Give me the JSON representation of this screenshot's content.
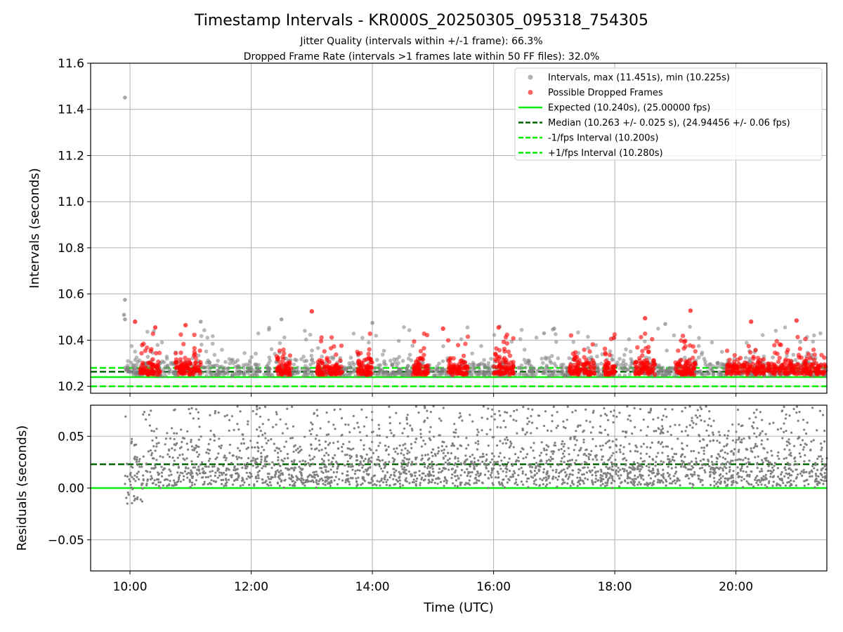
{
  "chart_data": [
    {
      "type": "scatter",
      "title": "Timestamp Intervals - KR000S_20250305_095318_754305",
      "subtitle": [
        "Jitter Quality (intervals within +/-1 frame): 66.3%",
        "Dropped Frame Rate (intervals >1 frames late within 50 FF files): 32.0%"
      ],
      "xlabel": "",
      "ylabel": "Intervals (seconds)",
      "xlim": [
        "09:21",
        "21:30"
      ],
      "ylim": [
        10.17,
        11.6
      ],
      "x_tick_labels": [
        "10:00",
        "12:00",
        "14:00",
        "16:00",
        "18:00",
        "20:00"
      ],
      "y_ticks": [
        10.2,
        10.4,
        10.6,
        10.8,
        11.0,
        11.2,
        11.4,
        11.6
      ],
      "y_tick_labels": [
        "10.2",
        "10.4",
        "10.6",
        "10.8",
        "11.0",
        "11.2",
        "11.4",
        "11.6"
      ],
      "grid": true,
      "legend_placement": "top-right",
      "series": [
        {
          "name": "Intervals, max (11.451s), min (10.225s)",
          "kind": "scatter",
          "color": "#808080",
          "notable_points": [
            {
              "x": "09:55",
              "y": 11.451
            },
            {
              "x": "09:55",
              "y": 10.575
            },
            {
              "x": "09:54",
              "y": 10.51
            },
            {
              "x": "09:55",
              "y": 10.49
            },
            {
              "x": "11:10",
              "y": 10.48
            },
            {
              "x": "12:30",
              "y": 10.49
            },
            {
              "x": "14:00",
              "y": 10.475
            },
            {
              "x": "18:50",
              "y": 10.47
            },
            {
              "x": "16:50",
              "y": 10.43
            },
            {
              "x": "17:00",
              "y": 10.45
            }
          ],
          "distribution": "dense band mostly between 10.23 and 10.35 from 09:55 to 21:30"
        },
        {
          "name": "Possible Dropped Frames",
          "kind": "scatter",
          "color": "#ff0000",
          "notable_points": [
            {
              "x": "10:05",
              "y": 10.48
            },
            {
              "x": "10:25",
              "y": 10.455
            },
            {
              "x": "10:55",
              "y": 10.465
            },
            {
              "x": "13:00",
              "y": 10.525
            },
            {
              "x": "15:10",
              "y": 10.45
            },
            {
              "x": "16:05",
              "y": 10.455
            },
            {
              "x": "18:30",
              "y": 10.495
            },
            {
              "x": "19:15",
              "y": 10.528
            },
            {
              "x": "20:15",
              "y": 10.48
            },
            {
              "x": "21:00",
              "y": 10.485
            }
          ],
          "clusters": [
            "10:10-10:30",
            "10:45-11:10",
            "12:25-12:40",
            "13:05-13:30",
            "13:45-14:00",
            "14:40-14:55",
            "15:15-15:35",
            "16:00-16:20",
            "17:15-17:40",
            "17:50-18:00",
            "18:20-18:40",
            "19:00-19:20",
            "19:50-21:30"
          ]
        },
        {
          "name": "Expected (10.240s), (25.00000 fps)",
          "kind": "hline",
          "y": 10.24,
          "color": "#00ee00",
          "style": "solid"
        },
        {
          "name": "Median (10.263 +/- 0.025 s), (24.94456 +/- 0.06 fps)",
          "kind": "hline",
          "y": 10.263,
          "color": "#006400",
          "style": "dashed"
        },
        {
          "name": "-1/fps Interval (10.200s)",
          "kind": "hline",
          "y": 10.2,
          "color": "#00ee00",
          "style": "dashed"
        },
        {
          "name": "+1/fps Interval (10.280s)",
          "kind": "hline",
          "y": 10.28,
          "color": "#00ee00",
          "style": "dashed"
        }
      ]
    },
    {
      "type": "scatter",
      "xlabel": "Time (UTC)",
      "ylabel": "Residuals (seconds)",
      "xlim": [
        "09:21",
        "21:30"
      ],
      "ylim": [
        -0.08,
        0.08
      ],
      "x_ticks": [
        "10:00",
        "12:00",
        "14:00",
        "16:00",
        "18:00",
        "20:00"
      ],
      "x_tick_labels": [
        "10:00",
        "12:00",
        "14:00",
        "16:00",
        "18:00",
        "20:00"
      ],
      "y_ticks": [
        -0.05,
        0.0,
        0.05
      ],
      "y_tick_labels": [
        "−0.05",
        "0.00",
        "0.05"
      ],
      "grid": true,
      "series": [
        {
          "kind": "scatter",
          "color": "#808080",
          "distribution": "residual points spread from about -0.015 to 0.08, densest between 0.00 and 0.04, from 09:55 to 21:30"
        },
        {
          "kind": "hline",
          "y": 0.0,
          "color": "#00ee00",
          "style": "solid"
        },
        {
          "kind": "hline",
          "y": 0.023,
          "color": "#006400",
          "style": "dashed"
        }
      ]
    }
  ]
}
